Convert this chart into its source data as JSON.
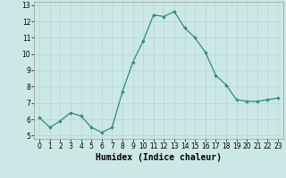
{
  "x": [
    0,
    1,
    2,
    3,
    4,
    5,
    6,
    7,
    8,
    9,
    10,
    11,
    12,
    13,
    14,
    15,
    16,
    17,
    18,
    19,
    20,
    21,
    22,
    23
  ],
  "y": [
    6.1,
    5.5,
    5.9,
    6.4,
    6.2,
    5.5,
    5.2,
    5.5,
    7.7,
    9.5,
    10.8,
    12.4,
    12.3,
    12.6,
    11.6,
    11.0,
    10.1,
    8.7,
    8.1,
    7.2,
    7.1,
    7.1,
    7.2,
    7.3
  ],
  "line_color": "#2e8b7a",
  "marker": "D",
  "marker_size": 1.8,
  "bg_color": "#cce8e6",
  "grid_color": "#b8d8d6",
  "xlabel": "Humidex (Indice chaleur)",
  "ylim": [
    4.8,
    13.2
  ],
  "xlim": [
    -0.5,
    23.5
  ],
  "yticks": [
    5,
    6,
    7,
    8,
    9,
    10,
    11,
    12,
    13
  ],
  "xticks": [
    0,
    1,
    2,
    3,
    4,
    5,
    6,
    7,
    8,
    9,
    10,
    11,
    12,
    13,
    14,
    15,
    16,
    17,
    18,
    19,
    20,
    21,
    22,
    23
  ],
  "tick_fontsize": 5.5,
  "xlabel_fontsize": 7.0
}
